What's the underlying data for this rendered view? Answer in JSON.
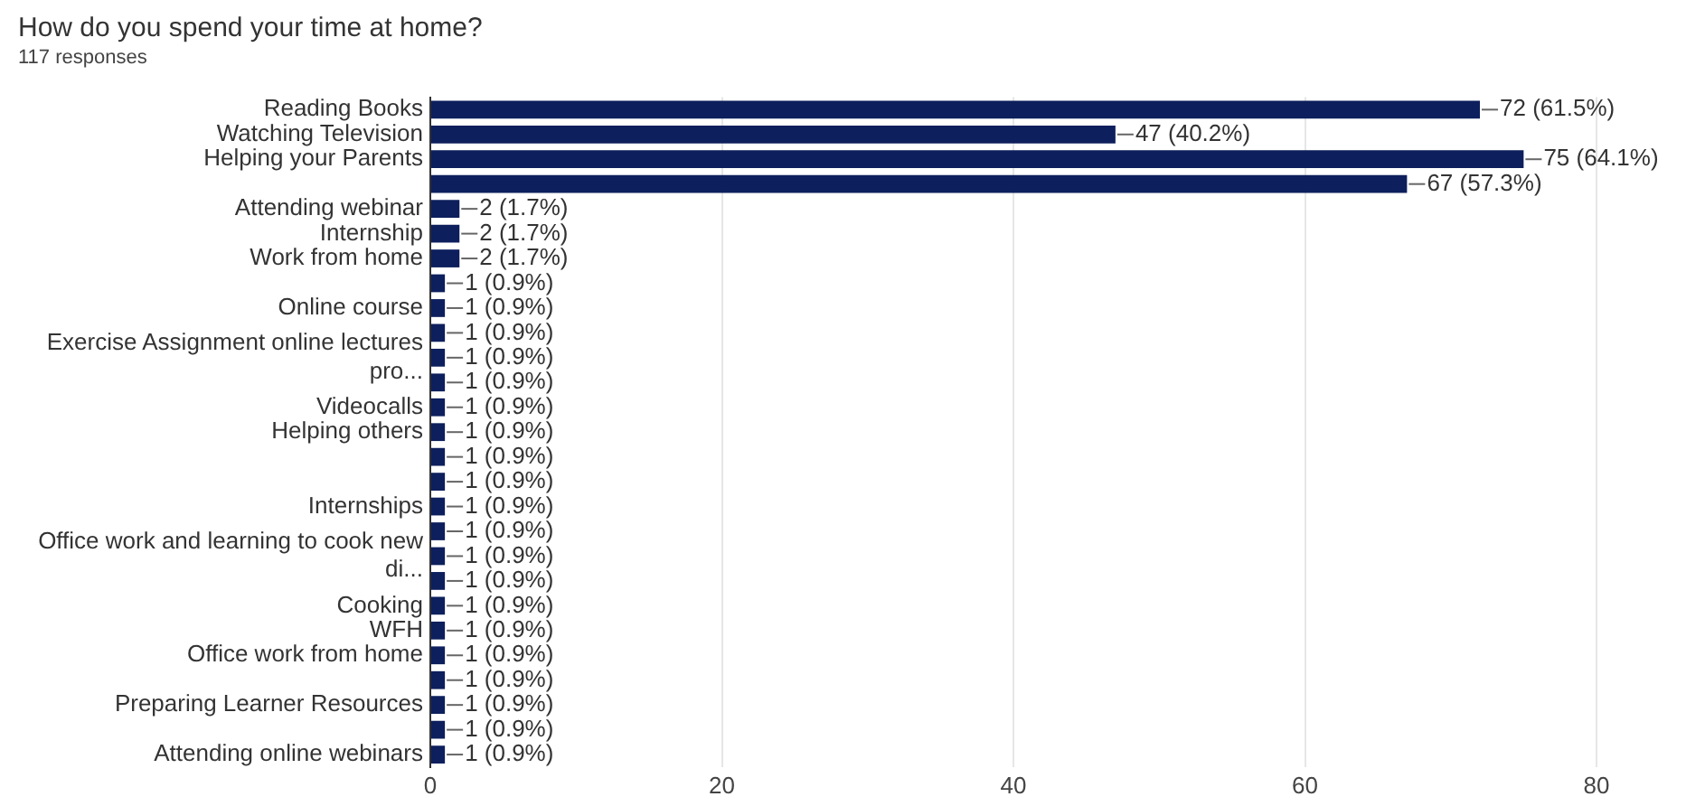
{
  "chart_data": {
    "type": "bar",
    "orientation": "horizontal",
    "title": "How do you spend your time at home?",
    "subtitle": "117 responses",
    "categories": [
      "Reading Books",
      "Watching Television",
      "Helping your Parents",
      null,
      "Attending webinar",
      "Internship",
      "Work from home",
      null,
      "Online course",
      null,
      "Exercise Assignment online lectures pro...",
      null,
      "Videocalls",
      "Helping others",
      null,
      null,
      "Internships",
      null,
      "Office work and learning to cook new di...",
      null,
      "Cooking",
      "WFH",
      "Office work from home",
      null,
      "Preparing Learner Resources",
      null,
      "Attending online webinars"
    ],
    "values": [
      72,
      47,
      75,
      67,
      2,
      2,
      2,
      1,
      1,
      1,
      1,
      1,
      1,
      1,
      1,
      1,
      1,
      1,
      1,
      1,
      1,
      1,
      1,
      1,
      1,
      1,
      1
    ],
    "value_labels": [
      "72 (61.5%)",
      "47 (40.2%)",
      "75 (64.1%)",
      "67 (57.3%)",
      "2 (1.7%)",
      "2 (1.7%)",
      "2 (1.7%)",
      "1 (0.9%)",
      "1 (0.9%)",
      "1 (0.9%)",
      "1 (0.9%)",
      "1 (0.9%)",
      "1 (0.9%)",
      "1 (0.9%)",
      "1 (0.9%)",
      "1 (0.9%)",
      "1 (0.9%)",
      "1 (0.9%)",
      "1 (0.9%)",
      "1 (0.9%)",
      "1 (0.9%)",
      "1 (0.9%)",
      "1 (0.9%)",
      "1 (0.9%)",
      "1 (0.9%)",
      "1 (0.9%)",
      "1 (0.9%)"
    ],
    "color": "#0d1f5c",
    "xlim": [
      0,
      80
    ],
    "xticks": [
      0,
      20,
      40,
      60,
      80
    ],
    "grid": "x",
    "legend": false
  }
}
